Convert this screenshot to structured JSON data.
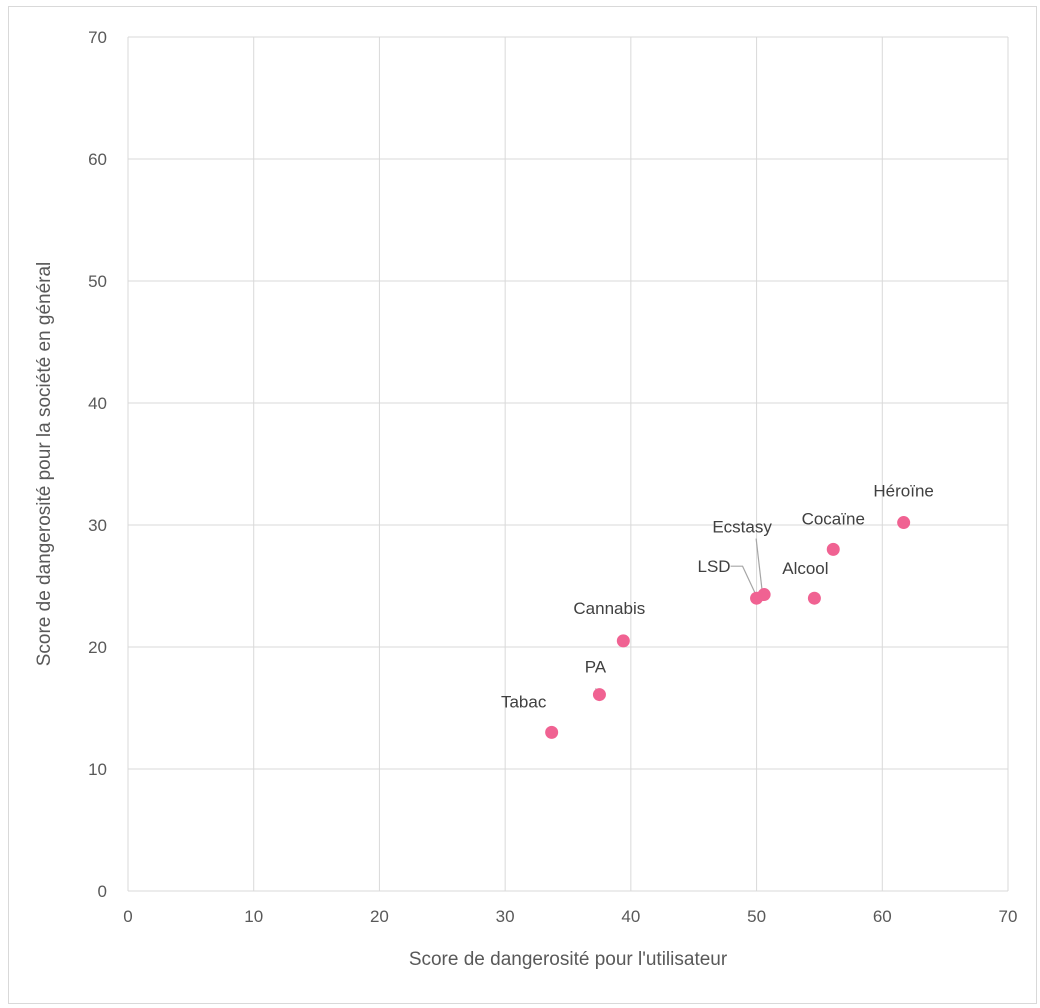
{
  "chart_data": {
    "type": "scatter",
    "xlabel": "Score de dangerosité pour l'utilisateur",
    "ylabel": "Score de dangerosité pour la société en général",
    "xlim": [
      0,
      70
    ],
    "ylim": [
      0,
      70
    ],
    "xticks": [
      "0",
      "10",
      "20",
      "30",
      "40",
      "50",
      "60",
      "70"
    ],
    "yticks": [
      "0",
      "10",
      "20",
      "30",
      "40",
      "50",
      "60",
      "70"
    ],
    "grid": true,
    "marker_color": "#f06292",
    "points": [
      {
        "label": "Tabac",
        "x": 33.7,
        "y": 13.0
      },
      {
        "label": "PA",
        "x": 37.5,
        "y": 16.1
      },
      {
        "label": "Cannabis",
        "x": 39.4,
        "y": 20.5
      },
      {
        "label": "LSD",
        "x": 50.0,
        "y": 24.0
      },
      {
        "label": "Ecstasy",
        "x": 50.6,
        "y": 24.3
      },
      {
        "label": "Alcool",
        "x": 54.6,
        "y": 24.0
      },
      {
        "label": "Cocaïne",
        "x": 56.1,
        "y": 28.0
      },
      {
        "label": "Héroïne",
        "x": 61.7,
        "y": 30.2
      }
    ]
  }
}
